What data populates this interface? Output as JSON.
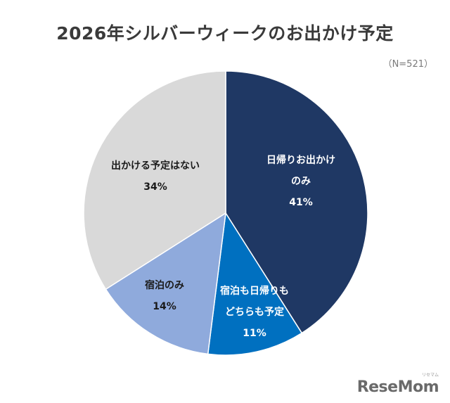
{
  "chart_data": {
    "type": "pie",
    "title": "2026年シルバーウィークのお出かけ予定",
    "sample_size": "（N=521）",
    "start_angle": "12 o'clock",
    "direction": "clockwise",
    "slices": [
      {
        "label_lines": [
          "日帰りお出かけ",
          "のみ"
        ],
        "value": 41,
        "value_label": "41%",
        "color": "#1f3864",
        "text_color": "#ffffff"
      },
      {
        "label_lines": [
          "宿泊も日帰りも",
          "どちらも予定"
        ],
        "value": 11,
        "value_label": "11%",
        "color": "#0070c0",
        "text_color": "#ffffff"
      },
      {
        "label_lines": [
          "宿泊のみ"
        ],
        "value": 14,
        "value_label": "14%",
        "color": "#8faadc",
        "text_color": "#1a1a1a"
      },
      {
        "label_lines": [
          "出かける予定はない"
        ],
        "value": 34,
        "value_label": "34%",
        "color": "#d9d9d9",
        "text_color": "#1a1a1a"
      }
    ]
  },
  "watermark": {
    "brand": "ReseMom",
    "sub": "リセマム"
  }
}
